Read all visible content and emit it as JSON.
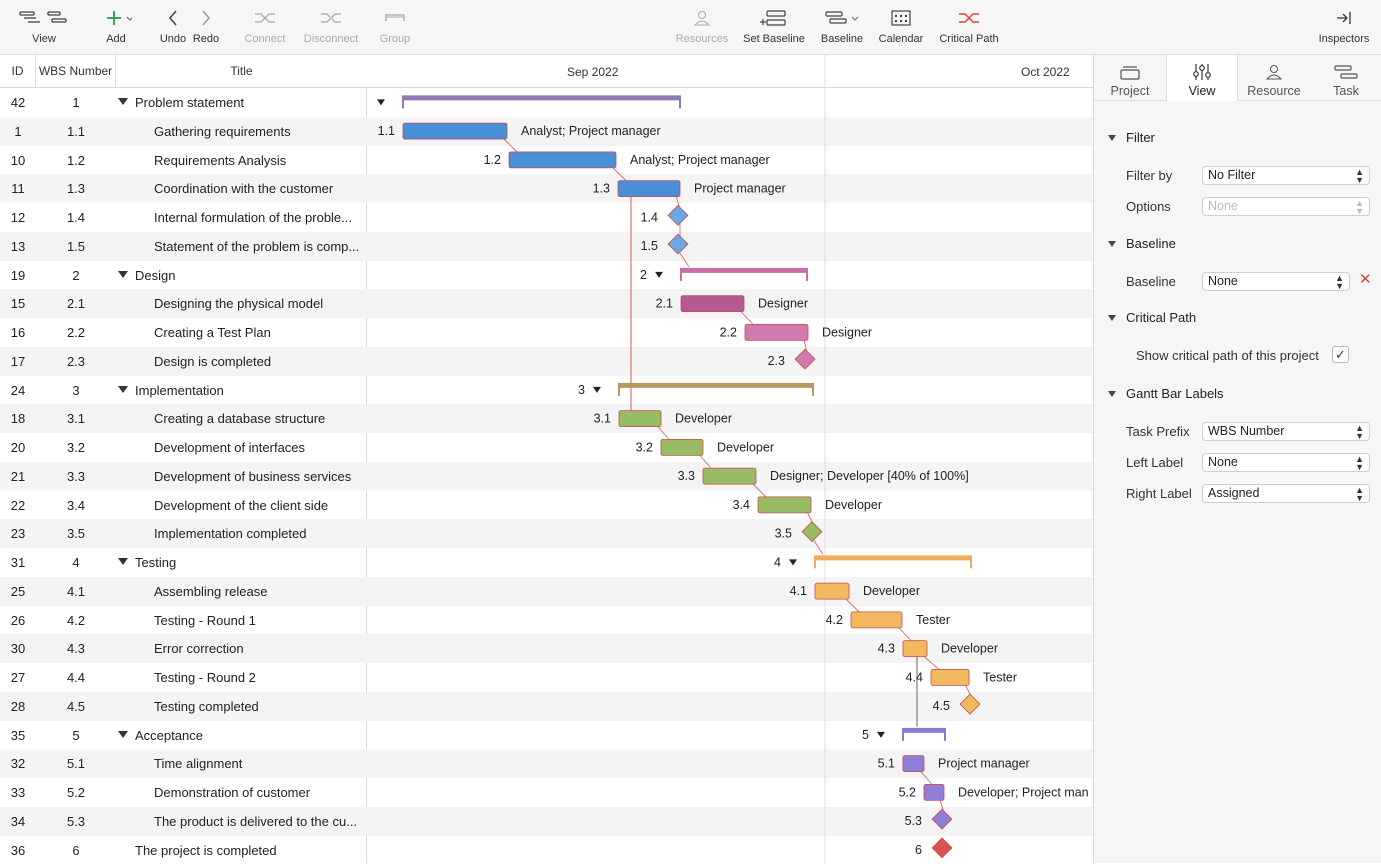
{
  "toolbar": {
    "view": "View",
    "add": "Add",
    "undo": "Undo",
    "redo": "Redo",
    "connect": "Connect",
    "disconnect": "Disconnect",
    "group": "Group",
    "resources": "Resources",
    "set_baseline": "Set Baseline",
    "baseline": "Baseline",
    "calendar": "Calendar",
    "critical_path": "Critical Path",
    "inspectors": "Inspectors"
  },
  "table": {
    "headers": {
      "id": "ID",
      "wbs": "WBS Number",
      "title": "Title"
    },
    "rows": [
      {
        "id": "42",
        "wbs": "1",
        "title": "Problem statement",
        "level": 0,
        "summary": true
      },
      {
        "id": "1",
        "wbs": "1.1",
        "title": "Gathering requirements",
        "level": 1
      },
      {
        "id": "10",
        "wbs": "1.2",
        "title": "Requirements Analysis",
        "level": 1
      },
      {
        "id": "11",
        "wbs": "1.3",
        "title": "Coordination with the customer",
        "level": 1
      },
      {
        "id": "12",
        "wbs": "1.4",
        "title": "Internal formulation of the proble...",
        "level": 1
      },
      {
        "id": "13",
        "wbs": "1.5",
        "title": "Statement of the problem is comp...",
        "level": 1
      },
      {
        "id": "19",
        "wbs": "2",
        "title": "Design",
        "level": 0,
        "summary": true
      },
      {
        "id": "15",
        "wbs": "2.1",
        "title": "Designing the physical model",
        "level": 1
      },
      {
        "id": "16",
        "wbs": "2.2",
        "title": "Creating a Test Plan",
        "level": 1
      },
      {
        "id": "17",
        "wbs": "2.3",
        "title": "Design is completed",
        "level": 1
      },
      {
        "id": "24",
        "wbs": "3",
        "title": "Implementation",
        "level": 0,
        "summary": true
      },
      {
        "id": "18",
        "wbs": "3.1",
        "title": "Creating a database structure",
        "level": 1
      },
      {
        "id": "20",
        "wbs": "3.2",
        "title": "Development of interfaces",
        "level": 1
      },
      {
        "id": "21",
        "wbs": "3.3",
        "title": "Development of business services",
        "level": 1
      },
      {
        "id": "22",
        "wbs": "3.4",
        "title": "Development of the client side",
        "level": 1
      },
      {
        "id": "23",
        "wbs": "3.5",
        "title": "Implementation completed",
        "level": 1
      },
      {
        "id": "31",
        "wbs": "4",
        "title": "Testing",
        "level": 0,
        "summary": true
      },
      {
        "id": "25",
        "wbs": "4.1",
        "title": "Assembling release",
        "level": 1
      },
      {
        "id": "26",
        "wbs": "4.2",
        "title": "Testing - Round 1",
        "level": 1
      },
      {
        "id": "30",
        "wbs": "4.3",
        "title": "Error correction",
        "level": 1
      },
      {
        "id": "27",
        "wbs": "4.4",
        "title": "Testing - Round 2",
        "level": 1
      },
      {
        "id": "28",
        "wbs": "4.5",
        "title": "Testing completed",
        "level": 1
      },
      {
        "id": "35",
        "wbs": "5",
        "title": "Acceptance",
        "level": 0,
        "summary": true
      },
      {
        "id": "32",
        "wbs": "5.1",
        "title": "Time alignment",
        "level": 1
      },
      {
        "id": "33",
        "wbs": "5.2",
        "title": "Demonstration of customer",
        "level": 1
      },
      {
        "id": "34",
        "wbs": "5.3",
        "title": "The product is delivered to the cu...",
        "level": 1
      },
      {
        "id": "36",
        "wbs": "6",
        "title": "The project is completed",
        "level": 0
      }
    ]
  },
  "gantt": {
    "months": [
      "Sep 2022",
      "Oct 2022"
    ],
    "bars": [
      {
        "label": "",
        "right": "",
        "type": "summary",
        "color": "#8e7bb5"
      },
      {
        "label": "1.1",
        "right": "Analyst; Project manager",
        "type": "task",
        "color": "#4a8fd9"
      },
      {
        "label": "1.2",
        "right": "Analyst; Project manager",
        "type": "task",
        "color": "#4a8fd9"
      },
      {
        "label": "1.3",
        "right": "Project manager",
        "type": "task",
        "color": "#4a8fd9"
      },
      {
        "label": "1.4",
        "right": "",
        "type": "milestone",
        "color": "#6aa7e6"
      },
      {
        "label": "1.5",
        "right": "",
        "type": "milestone",
        "color": "#6aa7e6"
      },
      {
        "label": "2",
        "right": "",
        "type": "summary",
        "color": "#c86fa6"
      },
      {
        "label": "2.1",
        "right": "Designer",
        "type": "task",
        "color": "#b65a93"
      },
      {
        "label": "2.2",
        "right": "Designer",
        "type": "task",
        "color": "#d07ab0"
      },
      {
        "label": "2.3",
        "right": "",
        "type": "milestone",
        "color": "#d07ab0"
      },
      {
        "label": "3",
        "right": "",
        "type": "summary",
        "color": "#b39a5e"
      },
      {
        "label": "3.1",
        "right": "Developer",
        "type": "task",
        "color": "#98bc63"
      },
      {
        "label": "3.2",
        "right": "Developer",
        "type": "task",
        "color": "#98bc63"
      },
      {
        "label": "3.3",
        "right": "Designer; Developer [40% of 100%]",
        "type": "task",
        "color": "#98bc63"
      },
      {
        "label": "3.4",
        "right": "Developer",
        "type": "task",
        "color": "#98bc63"
      },
      {
        "label": "3.5",
        "right": "",
        "type": "milestone",
        "color": "#98bc63"
      },
      {
        "label": "4",
        "right": "",
        "type": "summary",
        "color": "#efac5d"
      },
      {
        "label": "4.1",
        "right": "Developer",
        "type": "task",
        "color": "#f1b860"
      },
      {
        "label": "4.2",
        "right": "Tester",
        "type": "task",
        "color": "#f1b860"
      },
      {
        "label": "4.3",
        "right": "Developer",
        "type": "task",
        "color": "#f1b860"
      },
      {
        "label": "4.4",
        "right": "Tester",
        "type": "task",
        "color": "#f1b860"
      },
      {
        "label": "4.5",
        "right": "",
        "type": "milestone",
        "color": "#f1b860"
      },
      {
        "label": "5",
        "right": "",
        "type": "summary",
        "color": "#8a7ad0"
      },
      {
        "label": "5.1",
        "right": "Project manager",
        "type": "task",
        "color": "#8f7fd8"
      },
      {
        "label": "5.2",
        "right": "Developer; Project man",
        "type": "task",
        "color": "#8f7fd8"
      },
      {
        "label": "5.3",
        "right": "",
        "type": "milestone",
        "color": "#8f7fd8"
      },
      {
        "label": "6",
        "right": "",
        "type": "milestone",
        "color": "#d9534f"
      }
    ]
  },
  "inspector": {
    "tabs": [
      "Project",
      "View",
      "Resource",
      "Task"
    ],
    "active_tab": "View",
    "filter": {
      "heading": "Filter",
      "filter_by_label": "Filter by",
      "filter_by_value": "No Filter",
      "options_label": "Options",
      "options_value": "None"
    },
    "baseline": {
      "heading": "Baseline",
      "baseline_label": "Baseline",
      "baseline_value": "None"
    },
    "critical_path": {
      "heading": "Critical Path",
      "show_label": "Show critical path of this project",
      "checked": true
    },
    "bar_labels": {
      "heading": "Gantt Bar Labels",
      "task_prefix_label": "Task Prefix",
      "task_prefix_value": "WBS Number",
      "left_label": "Left Label",
      "left_value": "None",
      "right_label": "Right Label",
      "right_value": "Assigned"
    }
  }
}
